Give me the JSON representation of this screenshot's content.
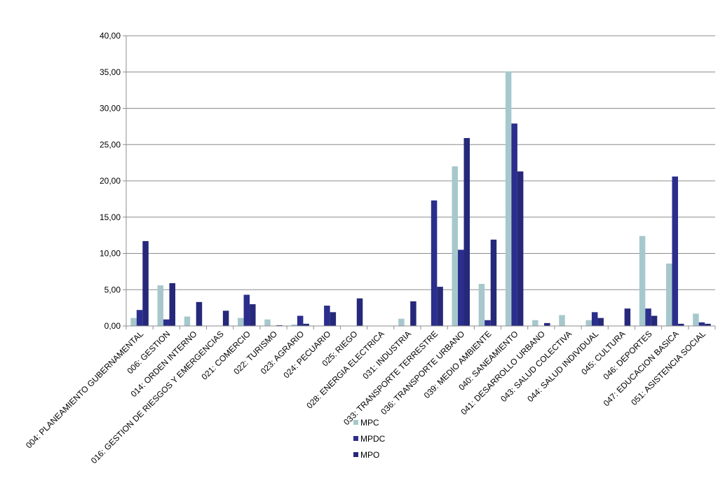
{
  "chart_data": {
    "type": "bar",
    "categories": [
      "004: PLANEAMIENTO GUBERNAMENTAL",
      "006: GESTION",
      "014: ORDEN INTERNO",
      "016: GESTION DE RIESGOS Y EMERGENCIAS",
      "021: COMERCIO",
      "022: TURISMO",
      "023: AGRARIO",
      "024: PECUARIO",
      "025: RIEGO",
      "028: ENERGIA ELECTRICA",
      "031: INDUSTRIA",
      "033: TRANSPORTE TERRESTRE",
      "036: TRANSPORTE URBANO",
      "039: MEDIO AMBIENTE",
      "040: SANEAMIENTO",
      "041: DESARROLLO URBANO",
      "043: SALUD COLECTIVA",
      "044: SALUD INDIVIDUAL",
      "045: CULTURA",
      "046: DEPORTES",
      "047: EDUCACION BASICA",
      "051: ASISTENCIA SOCIAL"
    ],
    "series": [
      {
        "name": "MPC",
        "color": "#a6c8cc",
        "values": [
          1.1,
          5.6,
          1.3,
          0,
          1.1,
          0.9,
          0.2,
          0,
          0,
          0,
          1.0,
          0,
          22.0,
          5.8,
          35.1,
          0.8,
          1.5,
          0.8,
          0,
          12.4,
          8.6,
          1.7
        ]
      },
      {
        "name": "MPDC",
        "color": "#2b2e8c",
        "values": [
          2.2,
          0.9,
          0,
          0,
          4.3,
          0,
          1.4,
          2.8,
          0,
          0,
          0,
          17.3,
          10.5,
          0.8,
          27.9,
          0,
          0,
          1.9,
          0,
          2.4,
          20.6,
          0.5
        ]
      },
      {
        "name": "MPO",
        "color": "#26287a",
        "values": [
          11.7,
          5.9,
          3.3,
          2.1,
          3.0,
          0.1,
          0.3,
          1.9,
          3.8,
          0,
          3.4,
          5.4,
          25.9,
          11.9,
          21.3,
          0.4,
          0,
          1.1,
          2.4,
          1.4,
          0.3,
          0.3
        ]
      }
    ],
    "ylim": [
      0,
      40
    ],
    "yticks": [
      "0,00",
      "5,00",
      "10,00",
      "15,00",
      "20,00",
      "25,00",
      "30,00",
      "35,00",
      "40,00"
    ],
    "grid": true,
    "legend_position": "bottom-center"
  }
}
